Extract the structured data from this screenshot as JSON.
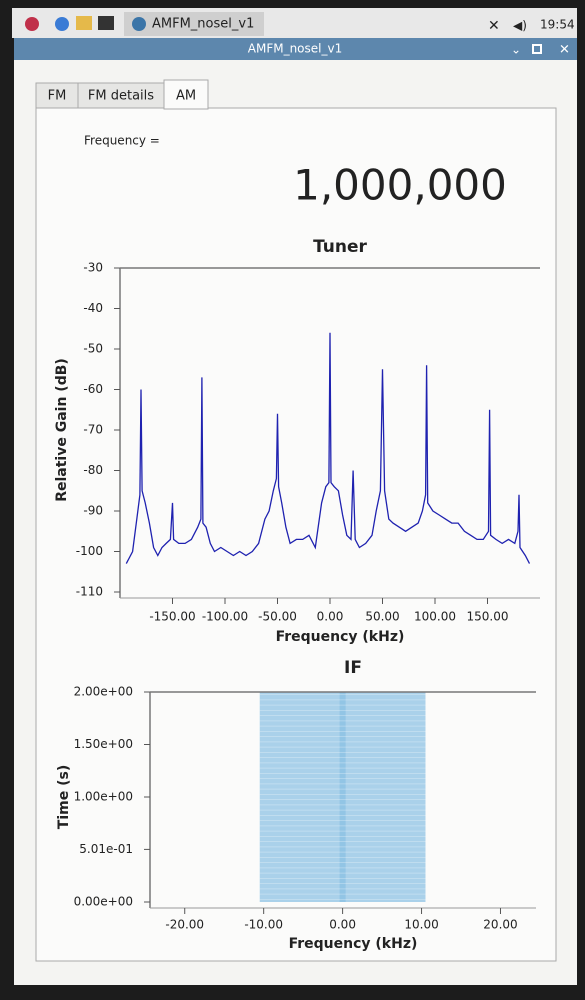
{
  "taskbar": {
    "app": "AMFM_nosel_v1",
    "clock": "19:54"
  },
  "window": {
    "title": "AMFM_nosel_v1"
  },
  "tabs": [
    "FM",
    "FM details",
    "AM"
  ],
  "active_tab": 2,
  "frequency": {
    "label": "Frequency =",
    "value": "1,000,000"
  },
  "charts": [
    {
      "type": "line",
      "title": "Tuner",
      "xlabel": "Frequency (kHz)",
      "ylabel": "Relative Gain (dB)",
      "color": "#1f22b0",
      "xlim": [
        -200,
        200
      ],
      "ylim": [
        -110,
        -30
      ],
      "xticks": [
        {
          "value": -150,
          "label": "-150.00"
        },
        {
          "value": -100,
          "label": "-100.00"
        },
        {
          "value": -50,
          "label": "-50.00"
        },
        {
          "value": 0,
          "label": "0.00"
        },
        {
          "value": 50,
          "label": "50.00"
        },
        {
          "value": 100,
          "label": "100.00"
        },
        {
          "value": 150,
          "label": "150.00"
        }
      ],
      "yticks": [
        -30,
        -40,
        -50,
        -60,
        -70,
        -80,
        -90,
        -100,
        -110
      ],
      "x": [
        -194,
        -188,
        -184,
        -181,
        -180,
        -179,
        -176,
        -172,
        -168,
        -164,
        -160,
        -156,
        -152,
        -150,
        -149,
        -144,
        -138,
        -132,
        -126,
        -123,
        -122,
        -121,
        -118,
        -114,
        -110,
        -104,
        -98,
        -92,
        -86,
        -80,
        -74,
        -68,
        -62,
        -58,
        -54,
        -51,
        -50,
        -49,
        -46,
        -42,
        -38,
        -32,
        -26,
        -20,
        -14,
        -8,
        -4,
        -1,
        0,
        1,
        4,
        8,
        12,
        16,
        20,
        22,
        24,
        28,
        34,
        40,
        44,
        48,
        50,
        52,
        56,
        60,
        66,
        72,
        78,
        84,
        88,
        91,
        92,
        93,
        98,
        104,
        110,
        116,
        122,
        128,
        134,
        140,
        146,
        151,
        152,
        153,
        158,
        164,
        170,
        176,
        179,
        180,
        181,
        186,
        190
      ],
      "values": [
        -103,
        -100,
        -92,
        -86,
        -60,
        -85,
        -88,
        -93,
        -99,
        -101,
        -99,
        -98,
        -97,
        -88,
        -97,
        -98,
        -98,
        -97,
        -94,
        -92,
        -57,
        -93,
        -94,
        -98,
        -100,
        -99,
        -100,
        -101,
        -100,
        -101,
        -100,
        -98,
        -92,
        -90,
        -85,
        -82,
        -66,
        -84,
        -88,
        -94,
        -98,
        -97,
        -97,
        -96,
        -99,
        -88,
        -84,
        -83,
        -46,
        -83,
        -84,
        -85,
        -91,
        -96,
        -97,
        -80,
        -97,
        -99,
        -98,
        -96,
        -90,
        -85,
        -55,
        -85,
        -92,
        -93,
        -94,
        -95,
        -94,
        -93,
        -90,
        -86,
        -54,
        -88,
        -90,
        -91,
        -92,
        -93,
        -93,
        -95,
        -96,
        -97,
        -97,
        -95,
        -65,
        -96,
        -97,
        -98,
        -97,
        -98,
        -95,
        -86,
        -99,
        -101,
        -103
      ]
    },
    {
      "type": "waterfall",
      "title": "IF",
      "xlabel": "Frequency (kHz)",
      "ylabel": "Time (s)",
      "color": "#8fc3e4",
      "xlim": [
        -24.4,
        24.5
      ],
      "ylim": [
        0,
        2
      ],
      "xticks": [
        {
          "value": -20,
          "label": "-20.00"
        },
        {
          "value": -10,
          "label": "-10.00"
        },
        {
          "value": 0,
          "label": "0.00"
        },
        {
          "value": 10,
          "label": "10.00"
        },
        {
          "value": 20,
          "label": "20.00"
        }
      ],
      "yticks": [
        {
          "value": 0,
          "label": "0.00e+00"
        },
        {
          "value": 0.501,
          "label": "5.01e-01"
        },
        {
          "value": 1,
          "label": "1.00e+00"
        },
        {
          "value": 1.5,
          "label": "1.50e+00"
        },
        {
          "value": 2,
          "label": "2.00e+00"
        }
      ],
      "signal_band": [
        -10.5,
        10.5
      ]
    }
  ]
}
